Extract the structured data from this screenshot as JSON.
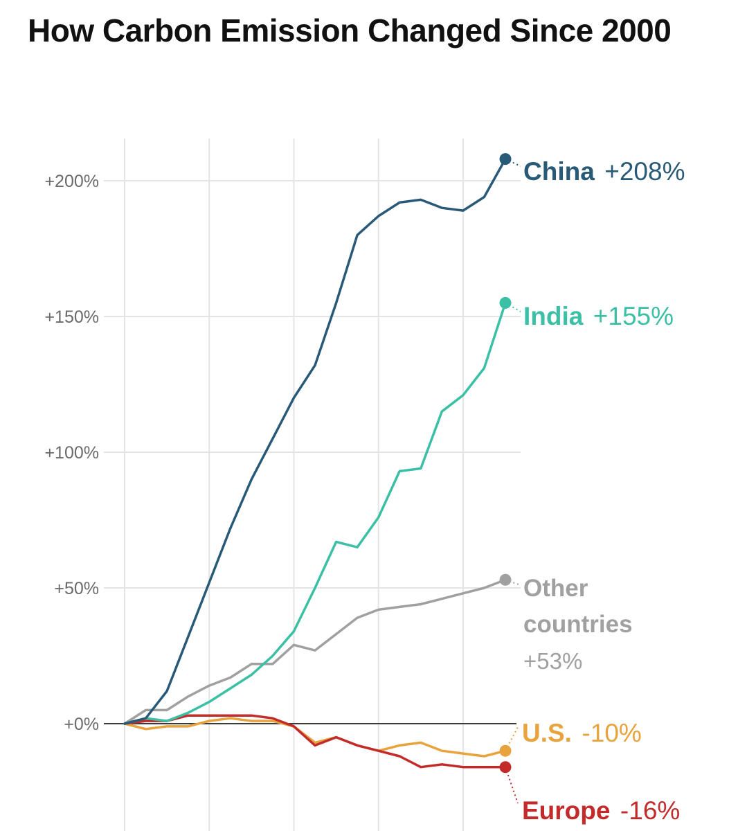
{
  "chart_data": {
    "type": "line",
    "title": "How Carbon Emission Changed Since 2000",
    "xlabel": "",
    "ylabel": "",
    "ylim": [
      -30,
      215
    ],
    "xlim": [
      2000,
      2018
    ],
    "y_ticks": [
      {
        "value": 200,
        "label": "+200%"
      },
      {
        "value": 150,
        "label": "+150%"
      },
      {
        "value": 100,
        "label": "+100%"
      },
      {
        "value": 50,
        "label": "+50%"
      },
      {
        "value": 0,
        "label": "+0%"
      }
    ],
    "x_gridlines": [
      2000,
      2004,
      2008,
      2012,
      2016
    ],
    "x": [
      2000,
      2001,
      2002,
      2003,
      2004,
      2005,
      2006,
      2007,
      2008,
      2009,
      2010,
      2011,
      2012,
      2013,
      2014,
      2015,
      2016,
      2017,
      2018
    ],
    "series": [
      {
        "name": "China",
        "label_value": "+208%",
        "color": "#285a78",
        "values": [
          0,
          2,
          12,
          32,
          52,
          72,
          90,
          105,
          120,
          132,
          155,
          180,
          187,
          192,
          193,
          190,
          189,
          194,
          208
        ]
      },
      {
        "name": "India",
        "label_value": "+155%",
        "color": "#3bbfa5",
        "values": [
          0,
          2,
          1,
          4,
          8,
          13,
          18,
          25,
          34,
          50,
          67,
          65,
          76,
          93,
          94,
          115,
          121,
          131,
          155
        ]
      },
      {
        "name": "Other countries",
        "label_lines": [
          "Other",
          "countries"
        ],
        "label_value": "+53%",
        "color": "#a0a0a0",
        "values": [
          0,
          5,
          5,
          10,
          14,
          17,
          22,
          22,
          29,
          27,
          33,
          39,
          42,
          43,
          44,
          46,
          48,
          50,
          53
        ]
      },
      {
        "name": "U.S.",
        "label_value": "-10%",
        "color": "#e8a33c",
        "values": [
          0,
          -2,
          -1,
          -1,
          1,
          2,
          1,
          1,
          -1,
          -7,
          -5,
          -8,
          -10,
          -8,
          -7,
          -10,
          -11,
          -12,
          -10
        ]
      },
      {
        "name": "Europe",
        "label_value": "-16%",
        "color": "#c32b2b",
        "values": [
          0,
          1,
          1,
          3,
          3,
          3,
          3,
          2,
          -1,
          -8,
          -5,
          -8,
          -10,
          -12,
          -16,
          -15,
          -16,
          -16,
          -16
        ]
      }
    ]
  }
}
